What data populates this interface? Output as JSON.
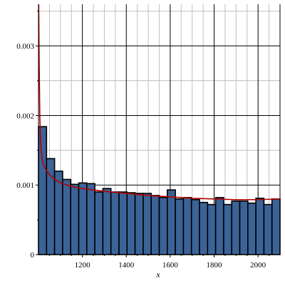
{
  "chart_data": {
    "type": "bar",
    "title": "",
    "xlabel": "x",
    "ylabel": "",
    "grid": true,
    "x_range": [
      1000,
      2100
    ],
    "ylim": [
      0,
      0.0036
    ],
    "y_ticks": [
      0,
      0.001,
      0.002,
      0.003
    ],
    "y_tick_labels": [
      "0",
      "0.001",
      "0.002",
      "0.003"
    ],
    "x_ticks": [
      1200,
      1400,
      1600,
      1800,
      2000
    ],
    "x_tick_labels": [
      "1200",
      "1400",
      "1600",
      "1800",
      "2000"
    ],
    "bins": {
      "start": 1000,
      "width": 36.67,
      "values": [
        0.00184,
        0.00138,
        0.0012,
        0.00108,
        0.00101,
        0.00103,
        0.00102,
        0.0009,
        0.00095,
        0.0009,
        0.0009,
        0.00089,
        0.00088,
        0.00088,
        0.00085,
        0.00082,
        0.00093,
        0.0008,
        0.00082,
        0.00079,
        0.00075,
        0.00072,
        0.00082,
        0.00072,
        0.00077,
        0.00077,
        0.00074,
        0.00081,
        0.00072,
        0.0008
      ]
    },
    "fit_curve": {
      "x": [
        1001,
        1003,
        1006,
        1010,
        1015,
        1020,
        1030,
        1045,
        1060,
        1080,
        1100,
        1150,
        1200,
        1250,
        1300,
        1400,
        1500,
        1600,
        1700,
        1800,
        1900,
        2000,
        2100
      ],
      "y": [
        0.0036,
        0.0028,
        0.002,
        0.0016,
        0.00142,
        0.00132,
        0.00124,
        0.00117,
        0.00112,
        0.00107,
        0.00103,
        0.00098,
        0.00095,
        0.00093,
        0.00091,
        0.00088,
        0.00085,
        0.00083,
        0.00081,
        0.0008,
        0.00079,
        0.00079,
        0.0008
      ]
    },
    "colors": {
      "bar_fill": "#3b6398",
      "bar_stroke": "#000000",
      "curve": "#b20000",
      "grid": "#c0c0c0",
      "grid_major": "#000000"
    }
  }
}
